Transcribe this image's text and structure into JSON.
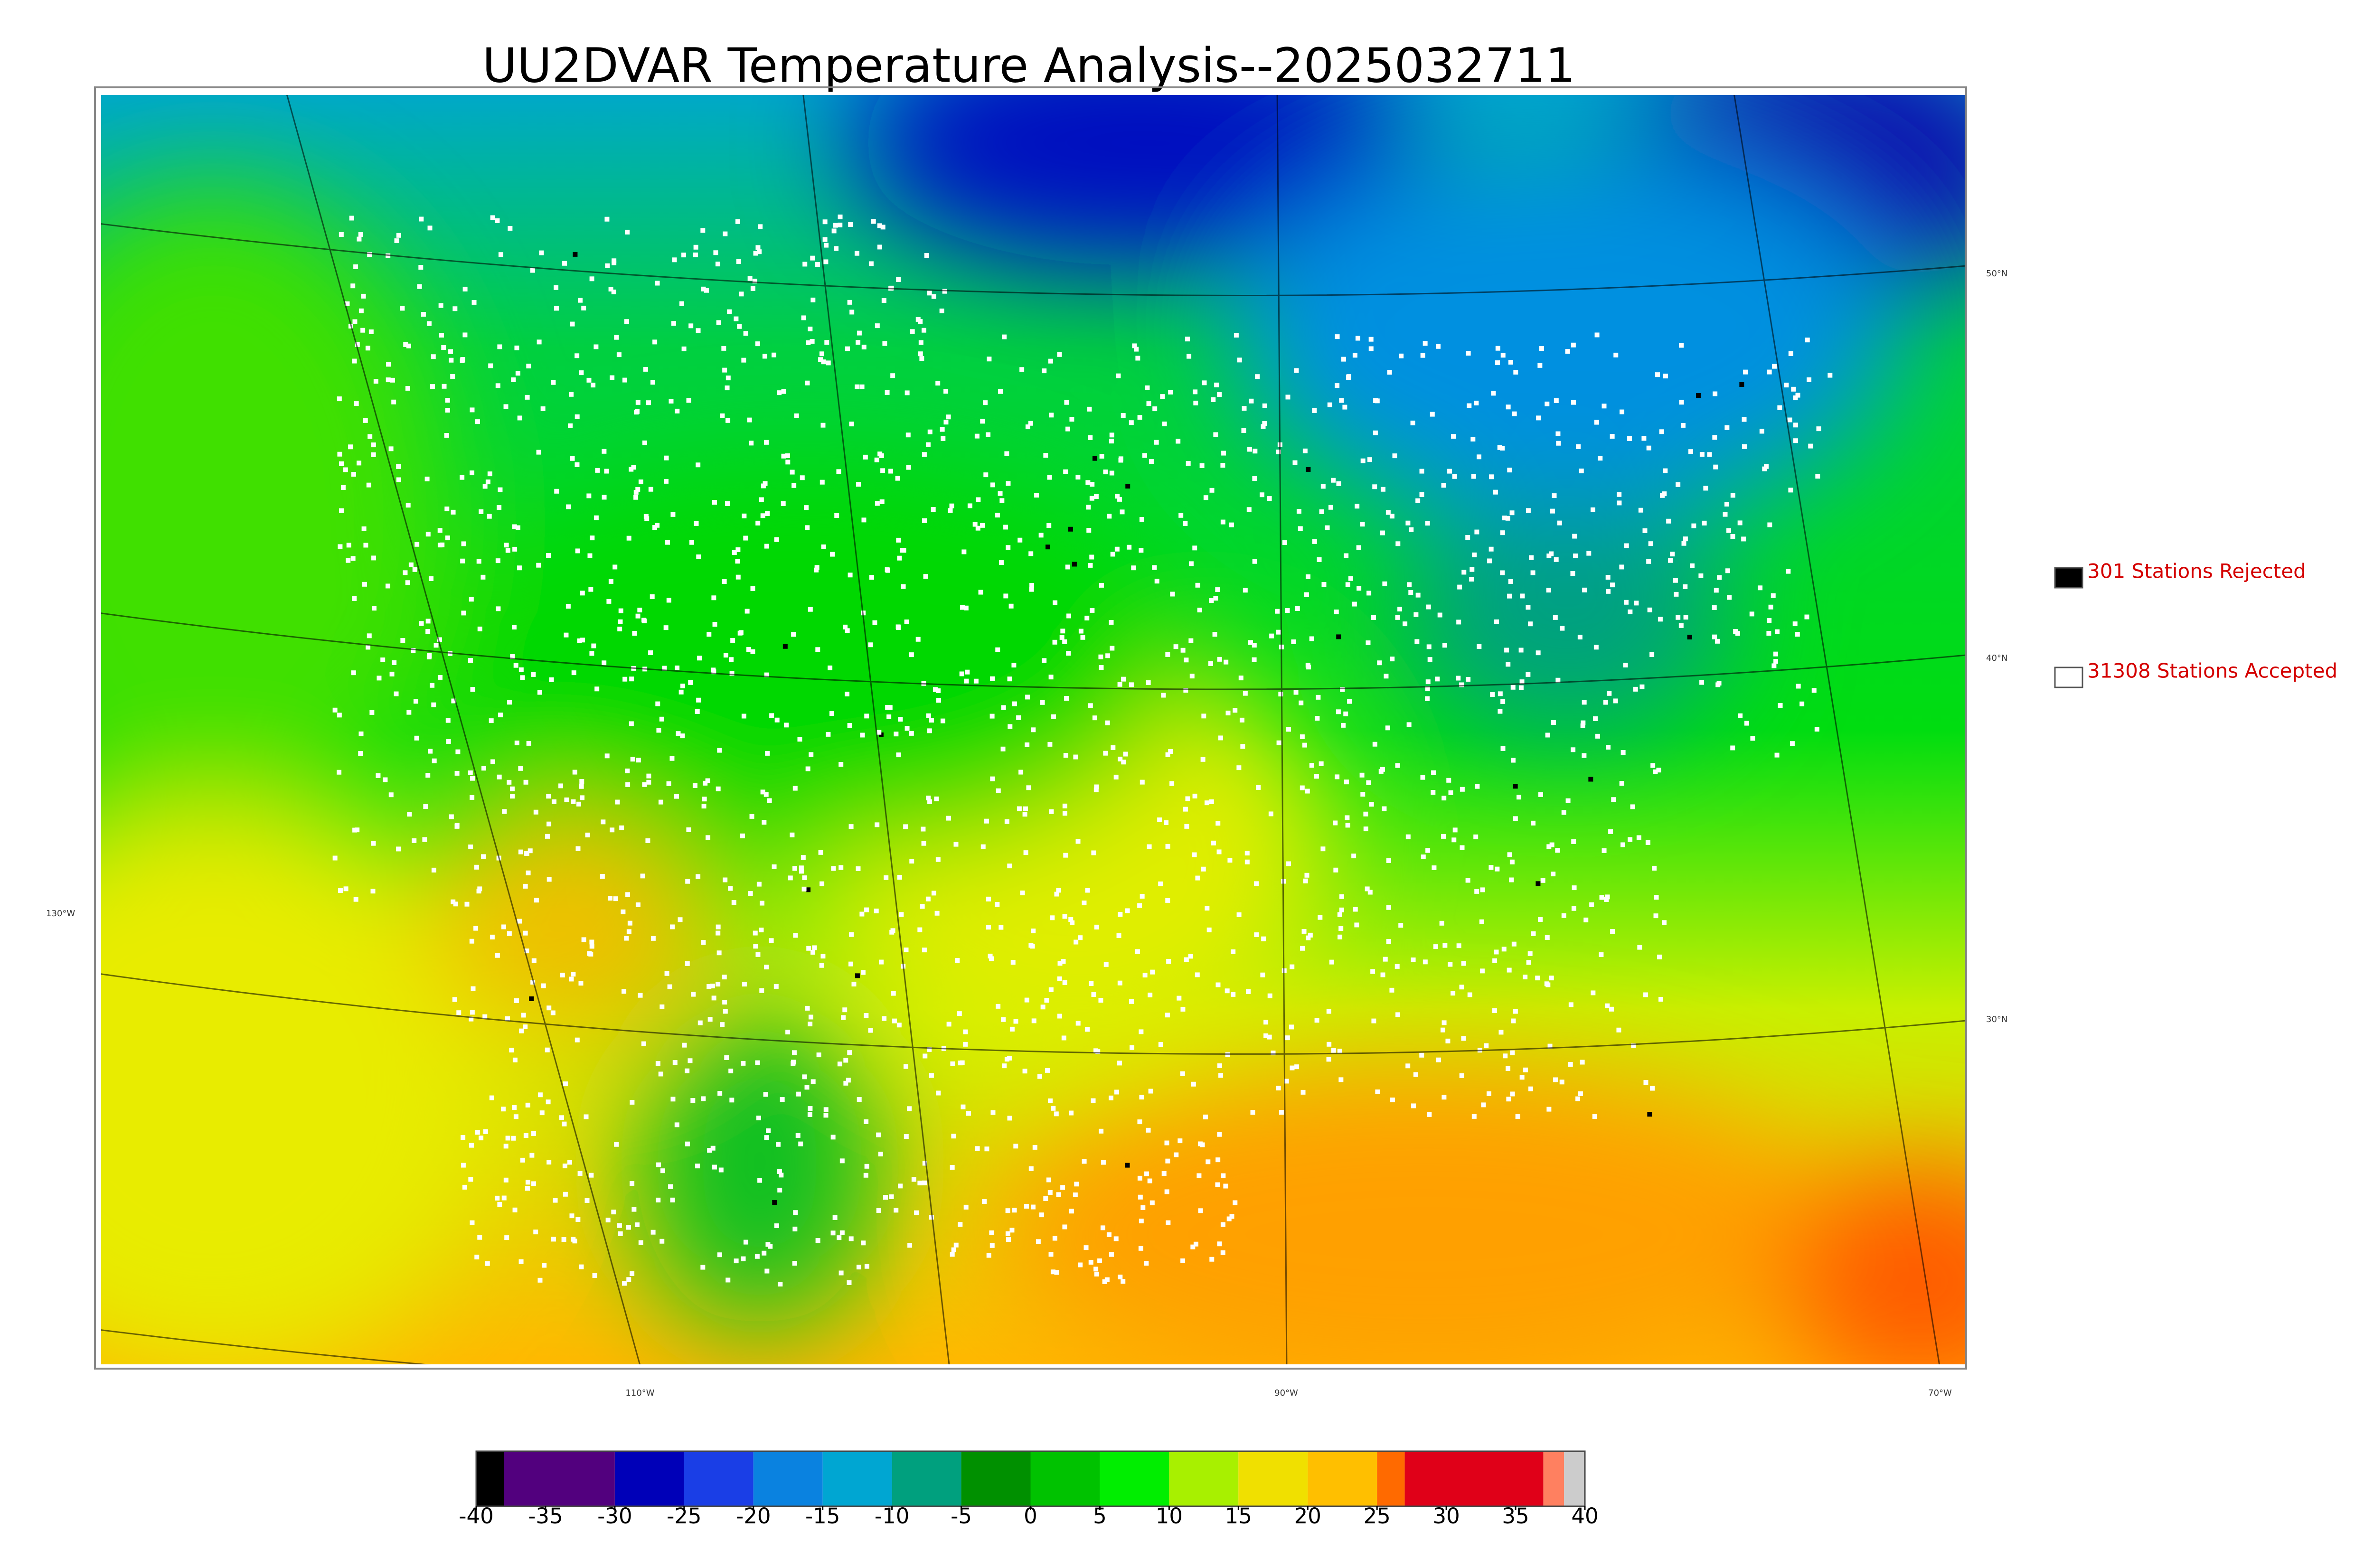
{
  "title": "UU2DVAR Temperature Analysis--2025032711",
  "legend": [
    {
      "label": "301 Stations Rejected",
      "color": "#000000"
    },
    {
      "label": "31308 Stations Accepted",
      "color": "#ffffff"
    }
  ],
  "latitude_labels": [
    "50°N",
    "40°N",
    "30°N"
  ],
  "longitude_labels": [
    "130°W",
    "110°W",
    "90°W",
    "70°W"
  ],
  "colorbar": {
    "lim": [
      -40,
      40
    ],
    "ticks": [
      -40,
      -35,
      -30,
      -25,
      -20,
      -15,
      -10,
      -5,
      0,
      5,
      10,
      15,
      20,
      25,
      30,
      35,
      40
    ],
    "bands": [
      {
        "from": -40,
        "to": -38,
        "color": "#000000"
      },
      {
        "from": -38,
        "to": -30,
        "color": "#52007e"
      },
      {
        "from": -30,
        "to": -25,
        "color": "#0000b8"
      },
      {
        "from": -25,
        "to": -20,
        "color": "#1a3ee6"
      },
      {
        "from": -20,
        "to": -15,
        "color": "#0a82e0"
      },
      {
        "from": -15,
        "to": -10,
        "color": "#00a6d2"
      },
      {
        "from": -10,
        "to": -5,
        "color": "#00a07e"
      },
      {
        "from": -5,
        "to": 0,
        "color": "#009000"
      },
      {
        "from": 0,
        "to": 5,
        "color": "#00c200"
      },
      {
        "from": 5,
        "to": 10,
        "color": "#00ee00"
      },
      {
        "from": 10,
        "to": 15,
        "color": "#a8f000"
      },
      {
        "from": 15,
        "to": 20,
        "color": "#f0e000"
      },
      {
        "from": 20,
        "to": 25,
        "color": "#ffbf00"
      },
      {
        "from": 25,
        "to": 27,
        "color": "#ff6a00"
      },
      {
        "from": 27,
        "to": 37,
        "color": "#e00018"
      },
      {
        "from": 37,
        "to": 38.5,
        "color": "#ff8060"
      },
      {
        "from": 38.5,
        "to": 40,
        "color": "#cccccc"
      }
    ]
  }
}
